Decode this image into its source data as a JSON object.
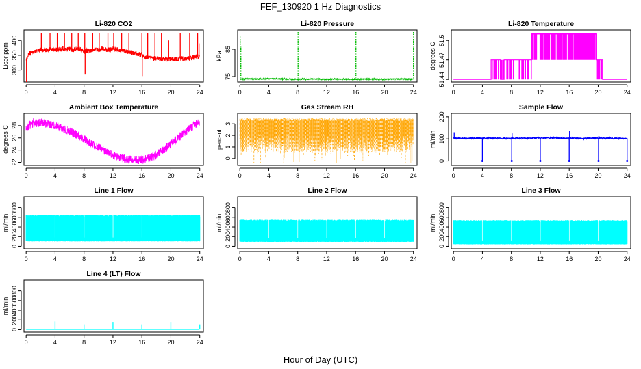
{
  "figure": {
    "title": "FEF_130920  1 Hz Diagnostics",
    "xlabel": "Hour of Day (UTC)"
  },
  "chart_data": [
    {
      "type": "line",
      "title": "Li-820 CO2",
      "ylabel": "Licor ppm",
      "x_ticks": [
        0,
        4,
        8,
        12,
        16,
        20,
        24
      ],
      "y_ticks": [
        300,
        350,
        400
      ],
      "xlim": [
        -0.3,
        24.5
      ],
      "ylim": [
        260,
        435
      ],
      "color": "#ff0000",
      "series": [
        {
          "x": [
            0,
            0.3,
            0.6,
            1,
            1.5,
            2,
            2.5,
            3,
            3.5,
            4,
            4.5,
            5,
            5.5,
            6,
            6.5,
            7,
            7.5,
            8,
            8.5,
            9,
            9.5,
            10,
            10.5,
            11,
            11.5,
            12,
            12.5,
            13,
            13.5,
            14,
            14.5,
            15,
            15.5,
            16,
            16.5,
            17,
            17.5,
            18,
            18.5,
            19,
            19.5,
            20,
            20.5,
            21,
            21.5,
            22,
            22.5,
            23,
            23.5,
            24
          ],
          "y": [
            335,
            350,
            358,
            362,
            365,
            368,
            370,
            366,
            372,
            370,
            368,
            372,
            369,
            371,
            368,
            372,
            370,
            362,
            365,
            368,
            371,
            369,
            372,
            370,
            368,
            372,
            370,
            365,
            366,
            362,
            360,
            356,
            354,
            350,
            345,
            342,
            340,
            339,
            338,
            338,
            337,
            338,
            337,
            338,
            339,
            338,
            340,
            342,
            344,
            342
          ]
        }
      ],
      "spikes": [
        {
          "x": 0.05,
          "y": 260
        },
        {
          "x": 2.1,
          "y": 425
        },
        {
          "x": 3.3,
          "y": 425
        },
        {
          "x": 4.3,
          "y": 425
        },
        {
          "x": 5.3,
          "y": 425
        },
        {
          "x": 6.3,
          "y": 425
        },
        {
          "x": 7.2,
          "y": 425
        },
        {
          "x": 8.1,
          "y": 425
        },
        {
          "x": 8.15,
          "y": 285
        },
        {
          "x": 9.2,
          "y": 425
        },
        {
          "x": 10.1,
          "y": 425
        },
        {
          "x": 11.3,
          "y": 425
        },
        {
          "x": 12.1,
          "y": 425
        },
        {
          "x": 13.2,
          "y": 425
        },
        {
          "x": 14.2,
          "y": 425
        },
        {
          "x": 16.0,
          "y": 425
        },
        {
          "x": 16.05,
          "y": 280
        },
        {
          "x": 16.8,
          "y": 425
        },
        {
          "x": 17.8,
          "y": 425
        },
        {
          "x": 18.7,
          "y": 425
        },
        {
          "x": 19.7,
          "y": 400
        },
        {
          "x": 21.3,
          "y": 425
        },
        {
          "x": 22.6,
          "y": 425
        },
        {
          "x": 23.7,
          "y": 425
        },
        {
          "x": 23.9,
          "y": 390
        }
      ]
    },
    {
      "type": "line",
      "title": "Li-820 Pressure",
      "ylabel": "kPa",
      "x_ticks": [
        0,
        4,
        8,
        12,
        16,
        20,
        24
      ],
      "y_ticks": [
        75,
        85
      ],
      "xlim": [
        -0.3,
        24.5
      ],
      "ylim": [
        73,
        92
      ],
      "color": "#00bb00",
      "series": [
        {
          "x": [
            0,
            0.2,
            1,
            2,
            4,
            6,
            8,
            10,
            12,
            14,
            16,
            18,
            20,
            22,
            24
          ],
          "y": [
            74,
            74,
            74.2,
            74.1,
            74.2,
            74.1,
            74.0,
            74.1,
            74.0,
            74.1,
            74.0,
            74.1,
            74.0,
            74.1,
            74.0
          ]
        }
      ],
      "spikes": [
        {
          "x": 0.05,
          "y": 90
        },
        {
          "x": 0.15,
          "y": 86
        },
        {
          "x": 8.05,
          "y": 91.5
        },
        {
          "x": 16.05,
          "y": 91.5
        },
        {
          "x": 24.0,
          "y": 91.5
        }
      ]
    },
    {
      "type": "line",
      "title": "Li-820 Temperature",
      "ylabel": "degrees C",
      "x_ticks": [
        0,
        4,
        8,
        12,
        16,
        20,
        24
      ],
      "y_ticks": [
        51.44,
        51.47,
        51.5
      ],
      "xlim": [
        -0.3,
        24.5
      ],
      "ylim": [
        51.436,
        51.516
      ],
      "color": "#ff00ff",
      "levels": {
        "low": 51.44,
        "mid": 51.47,
        "high": 51.51
      },
      "series": [
        {
          "x": [
            0,
            5.2,
            5.2,
            6.5,
            6.5,
            7.0,
            7.0,
            8.0,
            8.0,
            10.8,
            10.8,
            12.0,
            12.0,
            19.8,
            19.8,
            20.6,
            20.6,
            22.5,
            22.5,
            24.0
          ],
          "y": [
            51.44,
            51.44,
            51.47,
            51.47,
            51.44,
            51.44,
            51.47,
            51.47,
            51.47,
            51.47,
            51.51,
            51.51,
            51.51,
            51.51,
            51.47,
            51.47,
            51.44,
            51.44,
            51.44,
            51.44
          ]
        }
      ]
    },
    {
      "type": "line",
      "title": "Ambient Box Temperature",
      "ylabel": "degrees C",
      "x_ticks": [
        0,
        4,
        8,
        12,
        16,
        20,
        24
      ],
      "y_ticks": [
        22,
        24,
        26,
        28
      ],
      "xlim": [
        -0.3,
        24.5
      ],
      "ylim": [
        21.5,
        30
      ],
      "color": "#ff00ff",
      "series": [
        {
          "x": [
            0,
            1,
            2,
            3,
            4,
            5,
            6,
            7,
            8,
            9,
            10,
            11,
            12,
            13,
            14,
            15,
            16,
            17,
            18,
            19,
            20,
            21,
            22,
            23,
            24
          ],
          "y": [
            27.8,
            28.4,
            28.5,
            28.3,
            28.0,
            27.6,
            27.1,
            26.5,
            25.8,
            25.1,
            24.4,
            23.8,
            23.2,
            22.8,
            22.5,
            22.4,
            22.4,
            22.7,
            23.2,
            24.0,
            25.0,
            26.0,
            27.0,
            27.9,
            28.7
          ]
        }
      ]
    },
    {
      "type": "line",
      "title": "Gas Stream RH",
      "ylabel": "percent",
      "x_ticks": [
        0,
        4,
        8,
        12,
        16,
        20,
        24
      ],
      "y_ticks": [
        0,
        1,
        2,
        3
      ],
      "xlim": [
        -0.3,
        24.5
      ],
      "ylim": [
        -0.6,
        3.9
      ],
      "color": "#ffa500",
      "series": [
        {
          "x": [
            0,
            24
          ],
          "y_band": [
            0.5,
            3.5
          ]
        }
      ]
    },
    {
      "type": "line",
      "title": "Sample Flow",
      "ylabel": "ml/min",
      "x_ticks": [
        0,
        4,
        8,
        12,
        16,
        20,
        24
      ],
      "y_ticks": [
        0,
        100,
        200
      ],
      "xlim": [
        -0.3,
        24.5
      ],
      "ylim": [
        -20,
        215
      ],
      "color": "#0000ff",
      "series": [
        {
          "x": [
            0,
            2,
            4,
            6,
            8,
            10,
            12,
            14,
            16,
            18,
            20,
            22,
            24
          ],
          "y": [
            103,
            102,
            104,
            103,
            102,
            103,
            105,
            104,
            103,
            102,
            104,
            103,
            101
          ]
        }
      ],
      "dips": [
        {
          "x": 0.1,
          "y": 130
        },
        {
          "x": 4.0,
          "y": 0
        },
        {
          "x": 8.05,
          "y": 0
        },
        {
          "x": 8.1,
          "y": 125
        },
        {
          "x": 12.0,
          "y": 0
        },
        {
          "x": 16.0,
          "y": 0
        },
        {
          "x": 16.05,
          "y": 135
        },
        {
          "x": 20.05,
          "y": 0
        },
        {
          "x": 24.0,
          "y": 0
        }
      ]
    },
    {
      "type": "area",
      "title": "Line 1 Flow",
      "ylabel": "ml/min",
      "x_ticks": [
        0,
        4,
        8,
        12,
        16,
        20,
        24
      ],
      "y_ticks": [
        0,
        200,
        400,
        600,
        800
      ],
      "xlim": [
        -0.3,
        24.5
      ],
      "ylim": [
        -50,
        1020
      ],
      "color": "#00ffff",
      "band": {
        "low": 100,
        "high": 650
      },
      "gaps": [
        4.0,
        8.0,
        12.0,
        16.0,
        20.0
      ]
    },
    {
      "type": "area",
      "title": "Line 2 Flow",
      "ylabel": "ml/min",
      "x_ticks": [
        0,
        4,
        8,
        12,
        16,
        20,
        24
      ],
      "y_ticks": [
        0,
        200,
        400,
        600,
        800
      ],
      "xlim": [
        -0.3,
        24.5
      ],
      "ylim": [
        -50,
        1020
      ],
      "color": "#00ffff",
      "band": {
        "low": 90,
        "high": 550
      },
      "gaps": [
        4.0,
        8.0,
        12.0,
        16.0,
        20.0
      ]
    },
    {
      "type": "area",
      "title": "Line 3 Flow",
      "ylabel": "ml/min",
      "x_ticks": [
        0,
        4,
        8,
        12,
        16,
        20,
        24
      ],
      "y_ticks": [
        0,
        200,
        400,
        600,
        800
      ],
      "xlim": [
        -0.3,
        24.5
      ],
      "ylim": [
        -50,
        1020
      ],
      "color": "#00ffff",
      "band": {
        "low": 40,
        "high": 540
      },
      "gaps": [
        4.0,
        8.0,
        12.0,
        16.0,
        20.0
      ]
    },
    {
      "type": "line",
      "title": "Line 4 (LT) Flow",
      "ylabel": "ml/min",
      "x_ticks": [
        0,
        4,
        8,
        12,
        16,
        20,
        24
      ],
      "y_ticks": [
        0,
        200,
        400,
        600,
        800
      ],
      "xlim": [
        -0.3,
        24.5
      ],
      "ylim": [
        -50,
        1020
      ],
      "color": "#00ffff",
      "series": [
        {
          "x": [
            0,
            24
          ],
          "y": [
            5,
            5
          ]
        }
      ],
      "spikes": [
        {
          "x": 4.0,
          "y": 170
        },
        {
          "x": 8.0,
          "y": 110
        },
        {
          "x": 12.0,
          "y": 160
        },
        {
          "x": 16.0,
          "y": 110
        },
        {
          "x": 20.0,
          "y": 160
        },
        {
          "x": 24.0,
          "y": 110
        }
      ]
    }
  ]
}
